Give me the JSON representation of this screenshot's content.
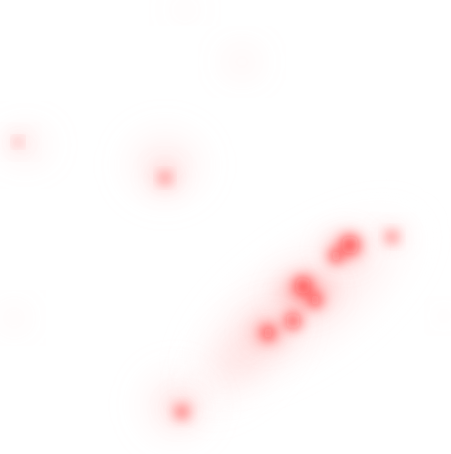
{
  "map": {
    "kind": "density-heatmap",
    "background": "#ffffff",
    "colors": {
      "hot": "#ff0000",
      "warm": "#ff6b6b",
      "cool": "#ffd6d6"
    },
    "style": "dotted-grid-density"
  }
}
